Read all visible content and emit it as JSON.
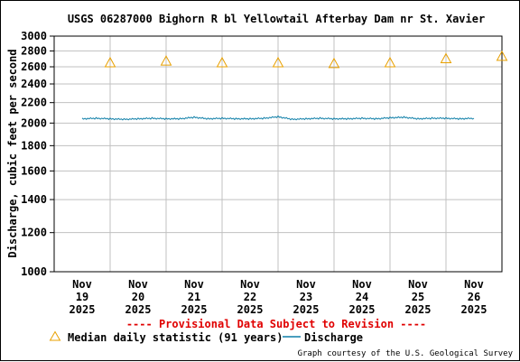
{
  "chart_data": {
    "type": "line",
    "title": "USGS 06287000 Bighorn R bl Yellowtail Afterbay Dam nr St. Xavier",
    "ylabel": "Discharge, cubic feet per second",
    "xlabel": "",
    "y_scale": "log",
    "ylim": [
      1000,
      3000
    ],
    "y_ticks": [
      1000,
      1200,
      1400,
      1600,
      1800,
      2000,
      2200,
      2400,
      2600,
      2800,
      3000
    ],
    "x_ticks": [
      {
        "month": "Nov",
        "day": "19",
        "year": "2025"
      },
      {
        "month": "Nov",
        "day": "20",
        "year": "2025"
      },
      {
        "month": "Nov",
        "day": "21",
        "year": "2025"
      },
      {
        "month": "Nov",
        "day": "22",
        "year": "2025"
      },
      {
        "month": "Nov",
        "day": "23",
        "year": "2025"
      },
      {
        "month": "Nov",
        "day": "24",
        "year": "2025"
      },
      {
        "month": "Nov",
        "day": "25",
        "year": "2025"
      },
      {
        "month": "Nov",
        "day": "26",
        "year": "2025"
      }
    ],
    "grid": true,
    "provisional_note": "---- Provisional Data Subject to Revision ----",
    "series": [
      {
        "name": "Median daily statistic (91 years)",
        "kind": "markers",
        "marker": "triangle",
        "color": "#e8a000",
        "x": [
          "2025-11-19 12:00",
          "2025-11-20 12:00",
          "2025-11-21 12:00",
          "2025-11-22 12:00",
          "2025-11-23 12:00",
          "2025-11-24 12:00",
          "2025-11-25 12:00",
          "2025-11-26 12:00"
        ],
        "y": [
          2650,
          2670,
          2650,
          2650,
          2640,
          2650,
          2700,
          2730
        ]
      },
      {
        "name": "Discharge",
        "kind": "line",
        "color": "#0f7fa8",
        "x": [
          "2025-11-19 00:00",
          "2025-11-19 06:00",
          "2025-11-19 12:00",
          "2025-11-19 18:00",
          "2025-11-20 00:00",
          "2025-11-20 06:00",
          "2025-11-20 12:00",
          "2025-11-20 18:00",
          "2025-11-21 00:00",
          "2025-11-21 06:00",
          "2025-11-21 12:00",
          "2025-11-21 18:00",
          "2025-11-22 00:00",
          "2025-11-22 06:00",
          "2025-11-22 12:00",
          "2025-11-22 18:00",
          "2025-11-23 00:00",
          "2025-11-23 06:00",
          "2025-11-23 12:00",
          "2025-11-23 18:00",
          "2025-11-24 00:00",
          "2025-11-24 06:00",
          "2025-11-24 12:00",
          "2025-11-24 18:00",
          "2025-11-25 00:00",
          "2025-11-25 06:00",
          "2025-11-25 12:00",
          "2025-11-25 18:00",
          "2025-11-26 00:00"
        ],
        "y": [
          2040,
          2045,
          2040,
          2035,
          2040,
          2045,
          2040,
          2040,
          2055,
          2040,
          2045,
          2040,
          2040,
          2045,
          2060,
          2035,
          2040,
          2045,
          2040,
          2040,
          2045,
          2040,
          2050,
          2055,
          2040,
          2045,
          2045,
          2040,
          2045
        ]
      }
    ]
  },
  "credit": "Graph courtesy of the U.S. Geological Survey",
  "colors": {
    "grid": "#c0c0c0",
    "provisional": "#e00000",
    "median_marker": "#e8a000",
    "discharge_line": "#0f7fa8"
  }
}
